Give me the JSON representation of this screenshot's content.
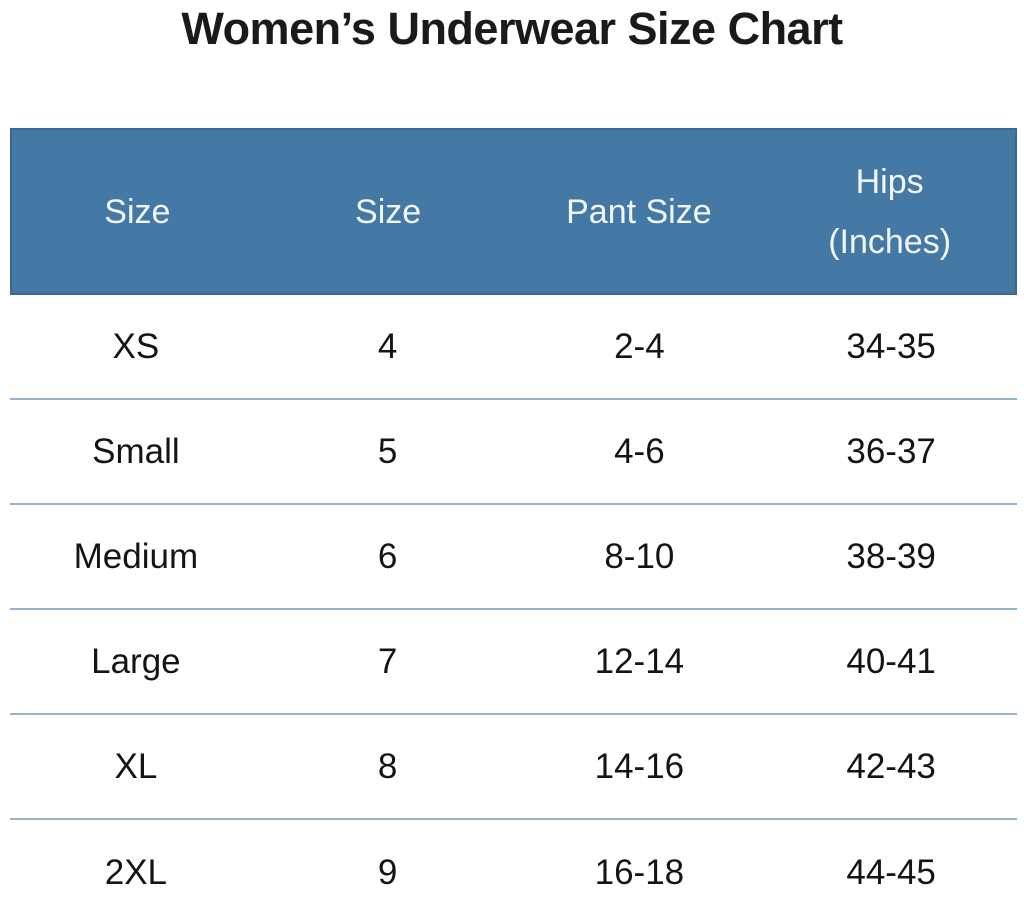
{
  "title": "Women’s Underwear Size Chart",
  "chart_data": {
    "type": "table",
    "title": "Women’s Underwear Size Chart",
    "columns": [
      {
        "line1": "Size",
        "line2": ""
      },
      {
        "line1": "Size",
        "line2": ""
      },
      {
        "line1": "Pant Size",
        "line2": ""
      },
      {
        "line1": "Hips",
        "line2": "(Inches)"
      }
    ],
    "rows": [
      [
        "XS",
        "4",
        "2-4",
        "34-35"
      ],
      [
        "Small",
        "5",
        "4-6",
        "36-37"
      ],
      [
        "Medium",
        "6",
        "8-10",
        "38-39"
      ],
      [
        "Large",
        "7",
        "12-14",
        "40-41"
      ],
      [
        "XL",
        "8",
        "14-16",
        "42-43"
      ],
      [
        "2XL",
        "9",
        "16-18",
        "44-45"
      ]
    ],
    "layout": {
      "grid": "off",
      "legend": "none"
    }
  },
  "colors": {
    "header_bg": "#4379A4",
    "header_border": "#3A688E",
    "header_text": "#F2F6FA",
    "row_divider": "#94B3CD",
    "title_text": "#1A1A1A",
    "body_text": "#141414",
    "background": "#FFFFFF"
  }
}
